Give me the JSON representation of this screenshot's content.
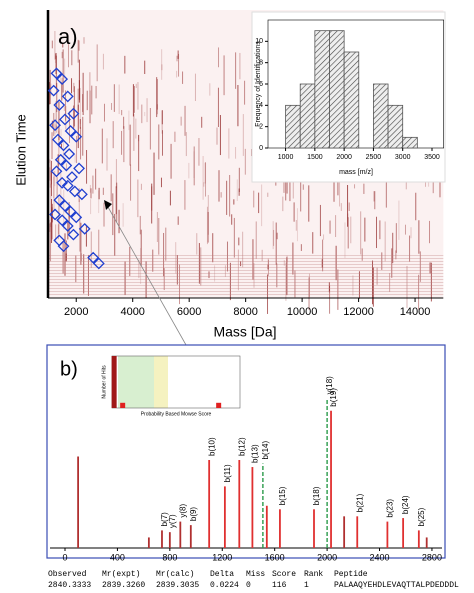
{
  "chart_data": [
    {
      "type": "scatter",
      "panel_label": "a)",
      "xlabel": "Mass [Da]",
      "ylabel": "Elution Time",
      "xlim": [
        1000,
        15000
      ],
      "xticks": [
        2000,
        4000,
        6000,
        8000,
        10000,
        12000,
        14000
      ],
      "ylim": [
        0,
        1
      ],
      "color": "#1f3fd0",
      "x": [
        1300,
        1500,
        1200,
        1700,
        1400,
        1900,
        1600,
        1250,
        1800,
        2000,
        1350,
        1550,
        1750,
        1450,
        1650,
        2100,
        1300,
        1850,
        1500,
        1700,
        1950,
        2200,
        1400,
        1600,
        1800,
        1250,
        1500,
        1700,
        2300,
        1900,
        2600,
        2800,
        1550,
        2000,
        1400
      ],
      "y": [
        0.78,
        0.76,
        0.72,
        0.7,
        0.67,
        0.64,
        0.62,
        0.6,
        0.58,
        0.56,
        0.55,
        0.53,
        0.5,
        0.48,
        0.46,
        0.45,
        0.44,
        0.42,
        0.4,
        0.39,
        0.37,
        0.36,
        0.34,
        0.32,
        0.3,
        0.29,
        0.27,
        0.25,
        0.24,
        0.22,
        0.14,
        0.12,
        0.18,
        0.28,
        0.2
      ]
    },
    {
      "type": "histogram",
      "xlabel": "mass [m/z]",
      "ylabel": "Frequency of Identifications",
      "bins": [
        1000,
        1250,
        1500,
        1750,
        2000,
        2250,
        2500,
        2750,
        3000,
        3250
      ],
      "counts": [
        4,
        6,
        11,
        11,
        9,
        0,
        6,
        4,
        1
      ],
      "xlim": [
        700,
        3700
      ],
      "xticks": [
        1000,
        1500,
        2000,
        2500,
        3000,
        3500
      ],
      "ylim": [
        0,
        12
      ],
      "yticks": [
        0,
        2,
        4,
        6,
        8,
        10
      ],
      "color": "#555555"
    },
    {
      "type": "spectrum",
      "panel_label": "b)",
      "xlim": [
        0,
        2850
      ],
      "xticks": [
        0,
        400,
        800,
        1200,
        1600,
        2000,
        2400,
        2800
      ],
      "ylim": [
        0,
        100
      ],
      "x": [
        100,
        640,
        740,
        800,
        880,
        960,
        1100,
        1220,
        1330,
        1430,
        1510,
        1540,
        1640,
        1900,
        2000,
        2030,
        2130,
        2230,
        2460,
        2580,
        2700,
        2760
      ],
      "values": [
        52,
        6,
        10,
        9,
        15,
        13,
        50,
        35,
        50,
        46,
        48,
        24,
        22,
        22,
        85,
        78,
        18,
        18,
        15,
        17,
        10,
        6
      ],
      "colors": [
        "#b03030",
        "#b03030",
        "#b03030",
        "#b03030",
        "#b03030",
        "#b03030",
        "#e03030",
        "#e03030",
        "#e03030",
        "#e03030",
        "#2a9a4a",
        "#e03030",
        "#e03030",
        "#e03030",
        "#2a9a4a",
        "#e03030",
        "#b03030",
        "#e03030",
        "#e03030",
        "#e03030",
        "#e03030",
        "#b03030"
      ],
      "peak_labels": [
        null,
        null,
        "b(7)",
        "y(7)",
        "y(8)",
        "b(9)",
        "b(10)",
        "b(11)",
        "b(12)",
        "b(13)",
        "b(14)",
        null,
        "b(15)",
        "b(18)",
        "y(18)",
        "b(19)",
        null,
        "b(21)",
        "b(23)",
        "b(24)",
        "b(25)",
        null
      ]
    },
    {
      "type": "bar",
      "xlabel": "Probability Based Mowse Score",
      "ylabel": "Number of Hits",
      "xlim": [
        0,
        60
      ],
      "ylim": [
        0,
        10
      ],
      "x": [
        1,
        5,
        50
      ],
      "values": [
        10,
        1,
        1
      ],
      "color": "#a01818"
    }
  ],
  "table": {
    "headers": [
      "Observed",
      "Mr(expt)",
      "Mr(calc)",
      "Delta",
      "Miss",
      "Score",
      "Rank",
      "Peptide"
    ],
    "rows": [
      [
        "2840.3333",
        "2839.3260",
        "2839.3035",
        "0.0224",
        "0",
        "116",
        "1",
        "PALAAQYEHDLEVAQTTALPDEDDDL"
      ]
    ]
  }
}
